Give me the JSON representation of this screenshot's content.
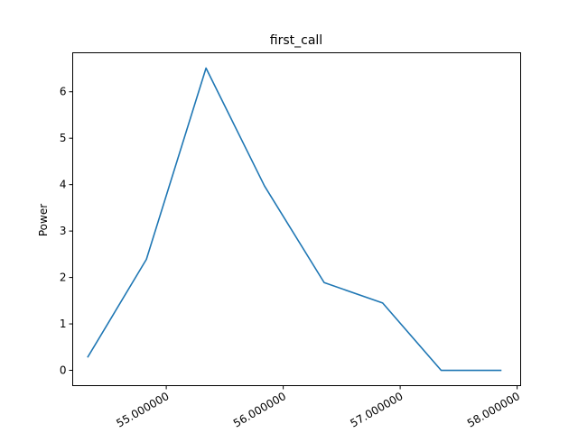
{
  "chart_data": {
    "type": "line",
    "title": "first_call",
    "xlabel": "",
    "ylabel": "Power",
    "xlim": [
      54.2,
      58.03
    ],
    "ylim": [
      -0.33,
      6.84
    ],
    "x_ticks": [
      55,
      56,
      57,
      58
    ],
    "x_tick_labels": [
      "55.000000",
      "56.000000",
      "57.000000",
      "58.000000"
    ],
    "y_ticks": [
      0,
      1,
      2,
      3,
      4,
      5,
      6
    ],
    "y_tick_labels": [
      "0",
      "1",
      "2",
      "3",
      "4",
      "5",
      "6"
    ],
    "grid": false,
    "series": [
      {
        "color": "#1f77b4",
        "x": [
          54.33,
          54.83,
          55.34,
          55.84,
          56.35,
          56.85,
          57.35,
          57.86
        ],
        "y": [
          0.29,
          2.39,
          6.51,
          3.97,
          1.89,
          1.45,
          0.0,
          0.0
        ]
      }
    ]
  }
}
